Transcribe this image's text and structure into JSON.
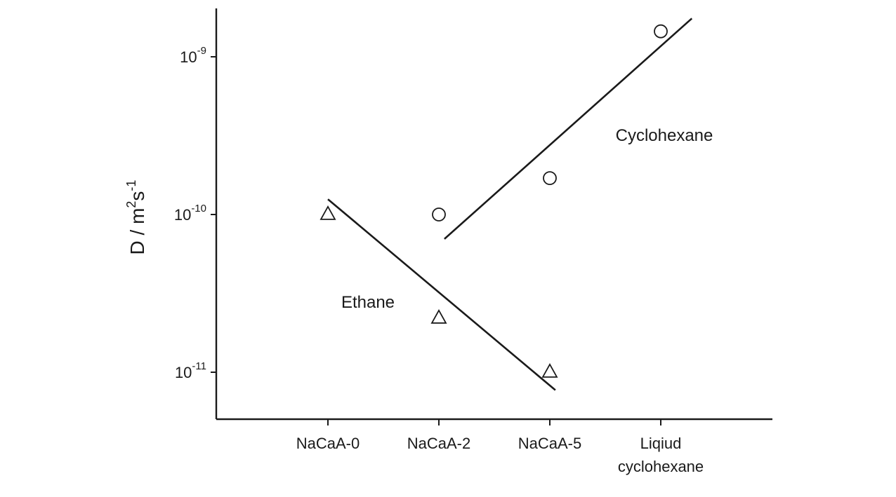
{
  "chart_data": {
    "type": "scatter",
    "title": "",
    "xlabel": "",
    "ylabel": "D / m2s-1",
    "ylabel_parts": {
      "main": "D / m",
      "sup1": "2",
      "mid": "s",
      "sup2": "-1"
    },
    "y_scale": "log",
    "ylim": [
      5e-12,
      2.2e-09
    ],
    "grid": false,
    "categories": [
      "NaCaA-0",
      "NaCaA-2",
      "NaCaA-5",
      "Liqiud cyclohexane"
    ],
    "category_label_lines": [
      [
        "NaCaA-0"
      ],
      [
        "NaCaA-2"
      ],
      [
        "NaCaA-5"
      ],
      [
        "Liqiud",
        "cyclohexane"
      ]
    ],
    "y_ticks": [
      {
        "value": 1e-11,
        "base": "10",
        "exp": "-11"
      },
      {
        "value": 1e-10,
        "base": "10",
        "exp": "-10"
      },
      {
        "value": 1e-09,
        "base": "10",
        "exp": "-9"
      }
    ],
    "series": [
      {
        "name": "Ethane",
        "marker": "triangle",
        "x_index": [
          0,
          1,
          2
        ],
        "values": [
          1e-10,
          2.2e-11,
          1e-11
        ],
        "fit": {
          "x_index": [
            0.0,
            2.05
          ],
          "values": [
            1.25e-10,
            7.7e-12
          ]
        }
      },
      {
        "name": "Cyclohexane",
        "marker": "circle",
        "x_index": [
          1,
          2,
          3
        ],
        "values": [
          1e-10,
          1.7e-10,
          1.45e-09
        ],
        "fit": {
          "x_index": [
            1.05,
            3.28
          ],
          "values": [
            7e-11,
            1.75e-09
          ]
        }
      }
    ]
  }
}
